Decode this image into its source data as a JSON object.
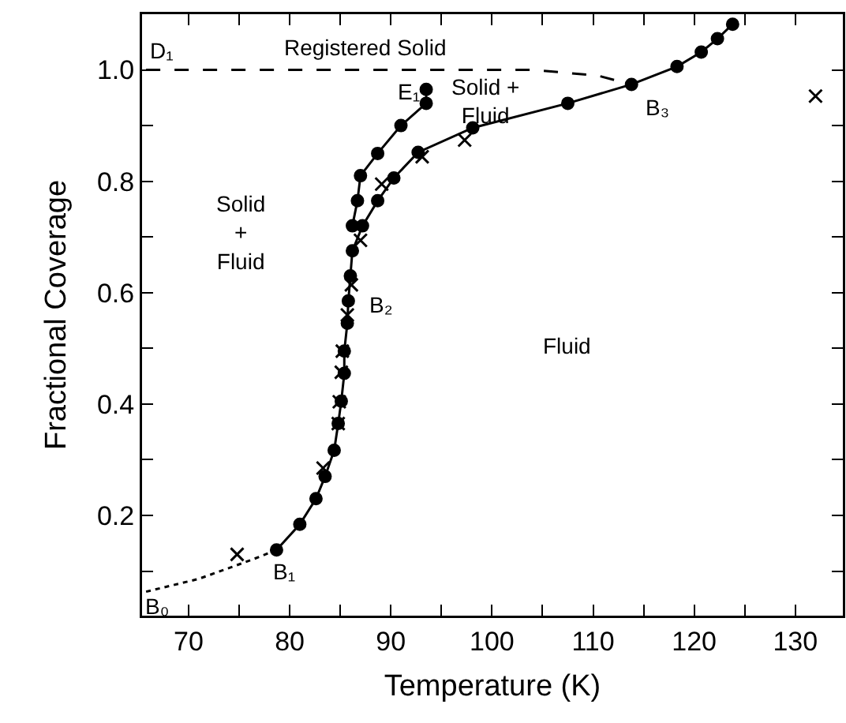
{
  "chart_data": {
    "type": "line",
    "xlabel": "Temperature (K)",
    "ylabel": "Fractional Coverage",
    "xlim": [
      65.4,
      134.7
    ],
    "ylim": [
      0.02,
      1.1
    ],
    "xticks": [
      70,
      {
        "value": 75,
        "label": null
      },
      80,
      {
        "value": 85,
        "label": null
      },
      90,
      {
        "value": 95,
        "label": null
      },
      100,
      {
        "value": 105,
        "label": null
      },
      110,
      {
        "value": 115,
        "label": null
      },
      120,
      {
        "value": 125,
        "label": null
      },
      130
    ],
    "yticks": [
      {
        "value": 0.1,
        "label": null
      },
      {
        "value": 0.2,
        "label": "0.2"
      },
      {
        "value": 0.3,
        "label": null
      },
      {
        "value": 0.4,
        "label": "0.4"
      },
      {
        "value": 0.5,
        "label": null
      },
      {
        "value": 0.6,
        "label": "0.6"
      },
      {
        "value": 0.7,
        "label": null
      },
      {
        "value": 0.8,
        "label": "0.8"
      },
      {
        "value": 0.9,
        "label": null
      },
      {
        "value": 1.0,
        "label": "1.0"
      }
    ],
    "grid": false,
    "series": [
      {
        "color": "#000000",
        "marker": "circle",
        "line_style": "solid",
        "x": [
          78.7,
          81.0,
          82.6,
          83.5,
          84.4,
          84.8,
          85.1,
          85.4,
          85.4,
          85.7,
          85.8,
          86.0,
          86.2,
          87.2,
          88.7,
          90.3,
          92.7,
          98.1,
          107.5,
          113.8,
          118.3,
          120.7,
          122.3,
          123.8
        ],
        "values": [
          0.138,
          0.184,
          0.23,
          0.27,
          0.317,
          0.365,
          0.405,
          0.455,
          0.495,
          0.545,
          0.585,
          0.63,
          0.675,
          0.72,
          0.765,
          0.806,
          0.852,
          0.896,
          0.94,
          0.974,
          1.006,
          1.032,
          1.056,
          1.082
        ]
      },
      {
        "color": "#000000",
        "marker": "circle",
        "line_style": "solid",
        "x": [
          86.2,
          86.7,
          87.0,
          88.7,
          91.0,
          93.5,
          93.5
        ],
        "values": [
          0.72,
          0.765,
          0.81,
          0.85,
          0.9,
          0.94,
          0.965
        ]
      },
      {
        "type": "scatter",
        "color": "#000000",
        "marker": "cross",
        "x": [
          132.0,
          97.3,
          93.1,
          89.1,
          87.0,
          86.1,
          85.7,
          85.2,
          85.1,
          84.9,
          84.8,
          83.3,
          74.8
        ],
        "values": [
          0.953,
          0.874,
          0.844,
          0.795,
          0.694,
          0.614,
          0.56,
          0.495,
          0.457,
          0.404,
          0.365,
          0.285,
          0.13
        ]
      },
      {
        "color": "#000000",
        "marker": "none",
        "line_style": "dotted",
        "x": [
          65.8,
          71.0,
          76.2,
          78.7
        ],
        "values": [
          0.063,
          0.086,
          0.12,
          0.138
        ]
      },
      {
        "color": "#000000",
        "marker": "none",
        "line_style": "dashed",
        "x": [
          65.8,
          104.0,
          110.4,
          113.8
        ],
        "values": [
          1.0,
          1.0,
          0.99,
          0.974
        ]
      }
    ],
    "annotations": [
      "D₁",
      "Registered Solid",
      "E₁",
      "Solid +\nFluid",
      "B₃",
      "Solid\n+\nFluid",
      "B₂",
      "Fluid",
      "B₁",
      "B₀"
    ]
  }
}
